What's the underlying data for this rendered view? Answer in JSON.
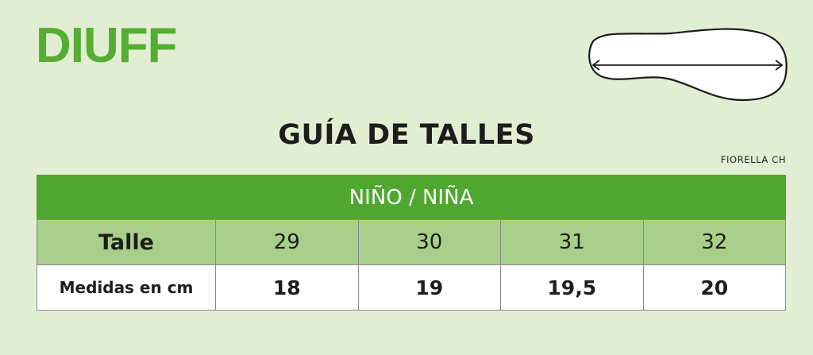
{
  "brand": {
    "logo": "DIUFF",
    "color": "#55ad32"
  },
  "diagram": {
    "icon": "shoe-sole-length-icon"
  },
  "title": "GUÍA DE TALLES",
  "model": "FIORELLA CH",
  "table": {
    "group": "NIÑO / NIÑA",
    "rows": [
      {
        "label": "Talle",
        "values": [
          "29",
          "30",
          "31",
          "32"
        ]
      },
      {
        "label": "Medidas en cm",
        "values": [
          "18",
          "19",
          "19,5",
          "20"
        ]
      }
    ]
  }
}
